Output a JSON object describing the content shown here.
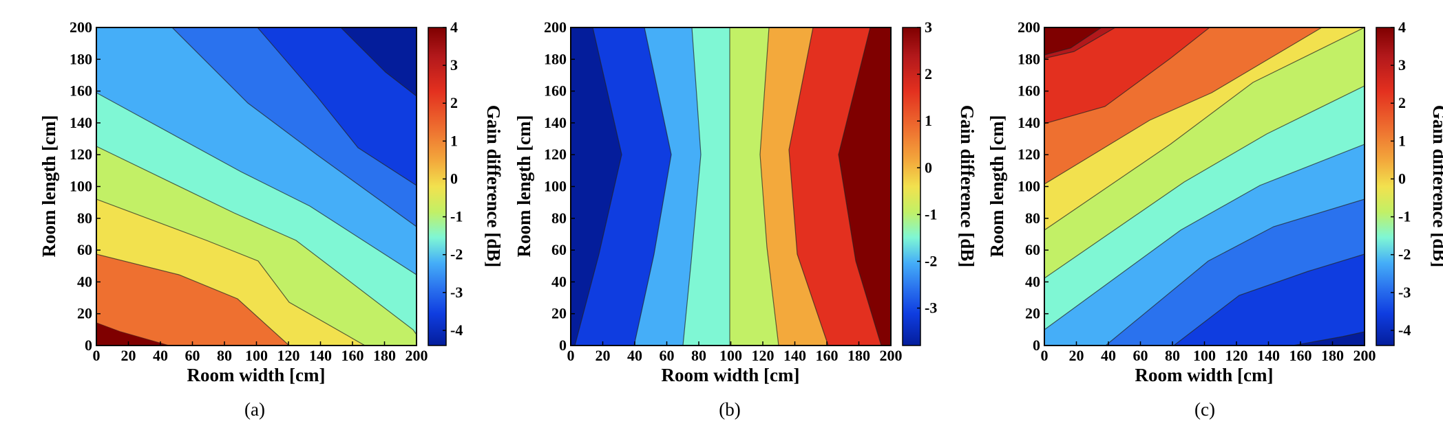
{
  "colormap": [
    "#7f0000",
    "#b2181b",
    "#e3301f",
    "#ee7030",
    "#f3a93c",
    "#f2e14e",
    "#c2f066",
    "#7ff7d4",
    "#45aef8",
    "#2a72ee",
    "#0f3de0",
    "#041d9b"
  ],
  "chart_data": [
    {
      "type": "contour",
      "caption": "(a)",
      "xlabel": "Room width [cm]",
      "ylabel": "Room length [cm]",
      "colorbar_label": "Gain difference [dB]",
      "xlim": [
        0,
        200
      ],
      "ylim": [
        0,
        200
      ],
      "xticks": [
        "0",
        "20",
        "40",
        "60",
        "80",
        "100",
        "120",
        "140",
        "160",
        "180",
        "200"
      ],
      "yticks": [
        "0",
        "20",
        "40",
        "60",
        "80",
        "100",
        "120",
        "140",
        "160",
        "180",
        "200"
      ],
      "zlim": [
        -4.4,
        4.0
      ],
      "colorbar_ticks": [
        "4",
        "3",
        "2",
        "1",
        "0",
        "-1",
        "-2",
        "-3",
        "-4"
      ],
      "contour_levels": [
        4.0,
        3.0,
        2.0,
        1.0,
        0.0,
        -1.0,
        -2.0,
        -3.0,
        -4.0
      ],
      "contour_edges_x_at_y0": [
        45,
        120,
        163,
        200
      ],
      "contour_edges_y_at_x0": [
        15,
        57,
        92,
        125,
        158,
        200
      ]
    },
    {
      "type": "contour",
      "caption": "(b)",
      "xlabel": "Room width [cm]",
      "ylabel": "Room length [cm]",
      "colorbar_label": "Gain difference [dB]",
      "xlim": [
        0,
        200
      ],
      "ylim": [
        0,
        200
      ],
      "xticks": [
        "0",
        "20",
        "40",
        "60",
        "80",
        "100",
        "120",
        "140",
        "160",
        "180",
        "200"
      ],
      "yticks": [
        "0",
        "20",
        "40",
        "60",
        "80",
        "100",
        "120",
        "140",
        "160",
        "180",
        "200"
      ],
      "zlim": [
        -3.8,
        3.0
      ],
      "colorbar_ticks": [
        "3",
        "2",
        "1",
        "0",
        "-1",
        "-2",
        "-3"
      ],
      "contour_edges_x_at_y200": [
        20,
        55,
        75,
        100,
        125,
        145,
        185
      ],
      "contour_edges_x_at_y120": [
        40,
        70,
        80,
        100,
        118,
        130,
        165
      ]
    },
    {
      "type": "contour",
      "caption": "(c)",
      "xlabel": "Room width [cm]",
      "ylabel": "Room length [cm]",
      "colorbar_label": "Gain difference [dB]",
      "xlim": [
        0,
        200
      ],
      "ylim": [
        0,
        200
      ],
      "xticks": [
        "0",
        "20",
        "40",
        "60",
        "80",
        "100",
        "120",
        "140",
        "160",
        "180",
        "200"
      ],
      "yticks": [
        "0",
        "20",
        "40",
        "60",
        "80",
        "100",
        "120",
        "140",
        "160",
        "180",
        "200"
      ],
      "zlim": [
        -4.4,
        4.0
      ],
      "colorbar_ticks": [
        "4",
        "3",
        "2",
        "1",
        "0",
        "-1",
        "-2",
        "-3",
        "-4"
      ],
      "contour_edges_y_at_x0": [
        10,
        43,
        73,
        103,
        135,
        178
      ],
      "contour_edges_x_at_y0": [
        37,
        82,
        155
      ]
    }
  ]
}
